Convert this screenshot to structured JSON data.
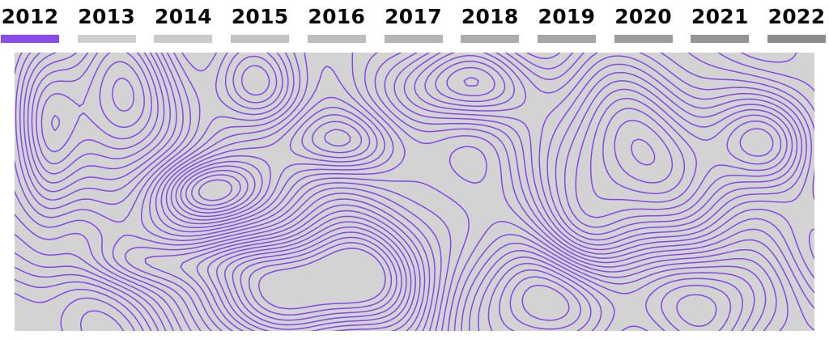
{
  "timeline": {
    "selected": "2012",
    "years": [
      {
        "label": "2012",
        "color": "#8a4cf0"
      },
      {
        "label": "2013",
        "color": "#d0d0d0"
      },
      {
        "label": "2014",
        "color": "#cacaca"
      },
      {
        "label": "2015",
        "color": "#c3c3c3"
      },
      {
        "label": "2016",
        "color": "#bdbdbd"
      },
      {
        "label": "2017",
        "color": "#b5b5b5"
      },
      {
        "label": "2018",
        "color": "#adadad"
      },
      {
        "label": "2019",
        "color": "#a5a5a5"
      },
      {
        "label": "2020",
        "color": "#9c9c9c"
      },
      {
        "label": "2021",
        "color": "#949494"
      },
      {
        "label": "2022",
        "color": "#8b8b8b"
      }
    ]
  },
  "map": {
    "background": "#d3d3d3",
    "line_color": "#8448e8"
  }
}
